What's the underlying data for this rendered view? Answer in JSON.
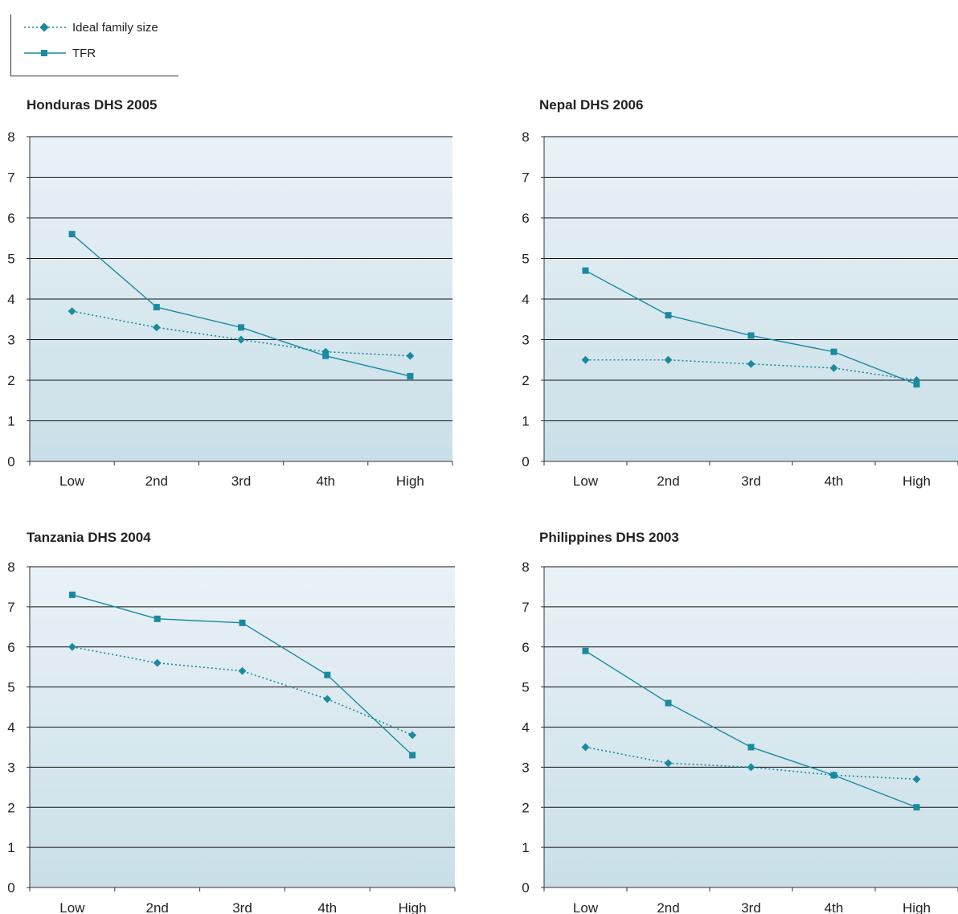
{
  "legend": {
    "ideal_label": "Ideal family size",
    "tfr_label": "TFR"
  },
  "colors": {
    "series": "#1a8aa0",
    "plot_top": "#eaf2f7",
    "plot_bottom": "#c9dfe8",
    "gridline": "#111111"
  },
  "chart_data": [
    {
      "type": "line",
      "title": "Honduras DHS 2005",
      "categories": [
        "Low",
        "2nd",
        "3rd",
        "4th",
        "High"
      ],
      "ylim": [
        0,
        8
      ],
      "yticks": [
        "0",
        "1",
        "2",
        "3",
        "4",
        "5",
        "6",
        "7",
        "8"
      ],
      "grid": true,
      "series": [
        {
          "name": "Ideal family size",
          "marker": "diamond",
          "style": "dotted",
          "values": [
            3.7,
            3.3,
            3.0,
            2.7,
            2.6
          ]
        },
        {
          "name": "TFR",
          "marker": "square",
          "style": "solid",
          "values": [
            5.6,
            3.8,
            3.3,
            2.6,
            2.1
          ]
        }
      ]
    },
    {
      "type": "line",
      "title": "Nepal DHS 2006",
      "categories": [
        "Low",
        "2nd",
        "3rd",
        "4th",
        "High"
      ],
      "ylim": [
        0,
        8
      ],
      "yticks": [
        "0",
        "1",
        "2",
        "3",
        "4",
        "5",
        "6",
        "7",
        "8"
      ],
      "grid": true,
      "series": [
        {
          "name": "Ideal family size",
          "marker": "diamond",
          "style": "dotted",
          "values": [
            2.5,
            2.5,
            2.4,
            2.3,
            2.0
          ]
        },
        {
          "name": "TFR",
          "marker": "square",
          "style": "solid",
          "values": [
            4.7,
            3.6,
            3.1,
            2.7,
            1.9
          ]
        }
      ]
    },
    {
      "type": "line",
      "title": "Tanzania DHS 2004",
      "categories": [
        "Low",
        "2nd",
        "3rd",
        "4th",
        "High"
      ],
      "ylim": [
        0,
        8
      ],
      "yticks": [
        "0",
        "1",
        "2",
        "3",
        "4",
        "5",
        "6",
        "7",
        "8"
      ],
      "grid": true,
      "series": [
        {
          "name": "Ideal family size",
          "marker": "diamond",
          "style": "dotted",
          "values": [
            6.0,
            5.6,
            5.4,
            4.7,
            3.8
          ]
        },
        {
          "name": "TFR",
          "marker": "square",
          "style": "solid",
          "values": [
            7.3,
            6.7,
            6.6,
            5.3,
            3.3
          ]
        }
      ]
    },
    {
      "type": "line",
      "title": "Philippines DHS 2003",
      "categories": [
        "Low",
        "2nd",
        "3rd",
        "4th",
        "High"
      ],
      "ylim": [
        0,
        8
      ],
      "yticks": [
        "0",
        "1",
        "2",
        "3",
        "4",
        "5",
        "6",
        "7",
        "8"
      ],
      "grid": true,
      "series": [
        {
          "name": "Ideal family size",
          "marker": "diamond",
          "style": "dotted",
          "values": [
            3.5,
            3.1,
            3.0,
            2.8,
            2.7
          ]
        },
        {
          "name": "TFR",
          "marker": "square",
          "style": "solid",
          "values": [
            5.9,
            4.6,
            3.5,
            2.8,
            2.0
          ]
        }
      ]
    }
  ]
}
